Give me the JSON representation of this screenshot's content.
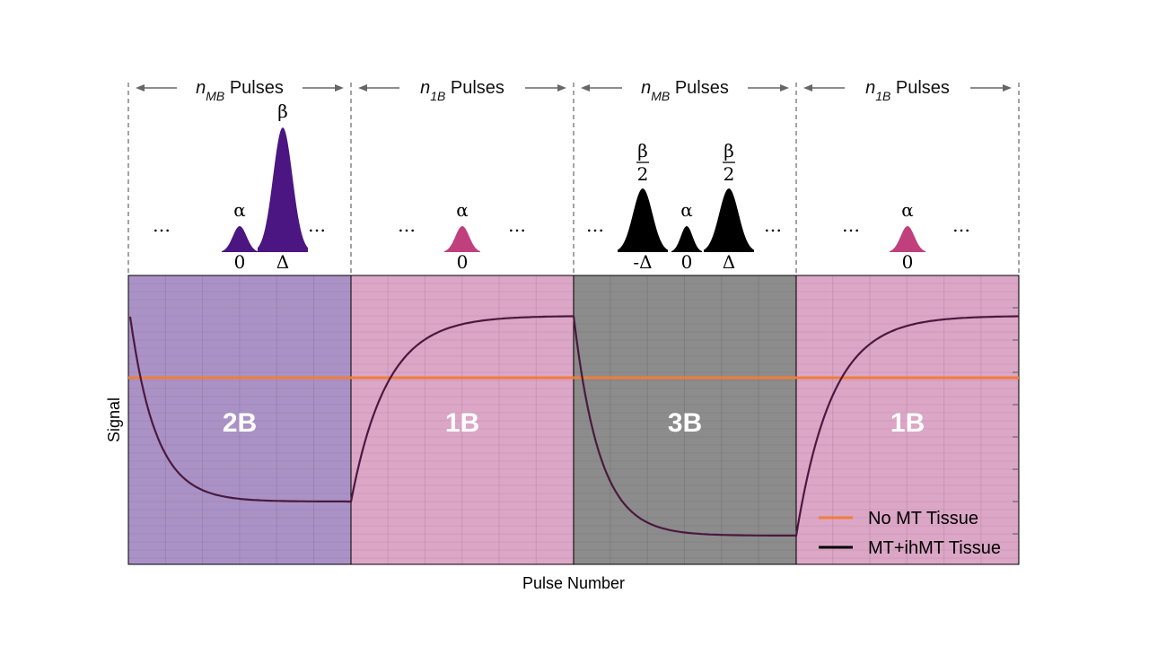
{
  "figure": {
    "xlabel": "Pulse Number",
    "ylabel": "Signal"
  },
  "segments": [
    {
      "id": "seg1",
      "label": "2B",
      "color": "#ab92c6",
      "header": {
        "n": "n",
        "sub": "MB",
        "word": "Pulses"
      },
      "pulses": [
        {
          "top": "α",
          "bottom": "0"
        },
        {
          "top": "β",
          "bottom": "Δ"
        }
      ],
      "ellipsis_left": "…",
      "ellipsis_right": "…"
    },
    {
      "id": "seg2",
      "label": "1B",
      "color": "#dca6c6",
      "header": {
        "n": "n",
        "sub": "1B",
        "word": "Pulses"
      },
      "pulses": [
        {
          "top": "α",
          "bottom": "0"
        }
      ],
      "ellipsis_left": "…",
      "ellipsis_right": "…"
    },
    {
      "id": "seg3",
      "label": "3B",
      "color": "#8c8c8c",
      "header": {
        "n": "n",
        "sub": "MB",
        "word": "Pulses"
      },
      "pulses": [
        {
          "top_num": "β",
          "top_den": "2",
          "bottom": "-Δ"
        },
        {
          "top": "α",
          "bottom": "0"
        },
        {
          "top_num": "β",
          "top_den": "2",
          "bottom": "Δ"
        }
      ],
      "ellipsis_left": "…",
      "ellipsis_right": "…"
    },
    {
      "id": "seg4",
      "label": "1B",
      "color": "#dca6c6",
      "header": {
        "n": "n",
        "sub": "1B",
        "word": "Pulses"
      },
      "pulses": [
        {
          "top": "α",
          "bottom": "0"
        }
      ],
      "ellipsis_left": "…",
      "ellipsis_right": "…"
    }
  ],
  "legend": {
    "items": [
      {
        "label": "No MT Tissue",
        "color": "#f07d3a"
      },
      {
        "label": "MT+ihMT Tissue",
        "color": "#000000"
      }
    ]
  },
  "colors": {
    "pulse_2b": "#4b1582",
    "pulse_1b": "#c0407e",
    "pulse_3b": "#000000",
    "curve": "#4a1a3e",
    "no_mt_line": "#f07d3a"
  }
}
